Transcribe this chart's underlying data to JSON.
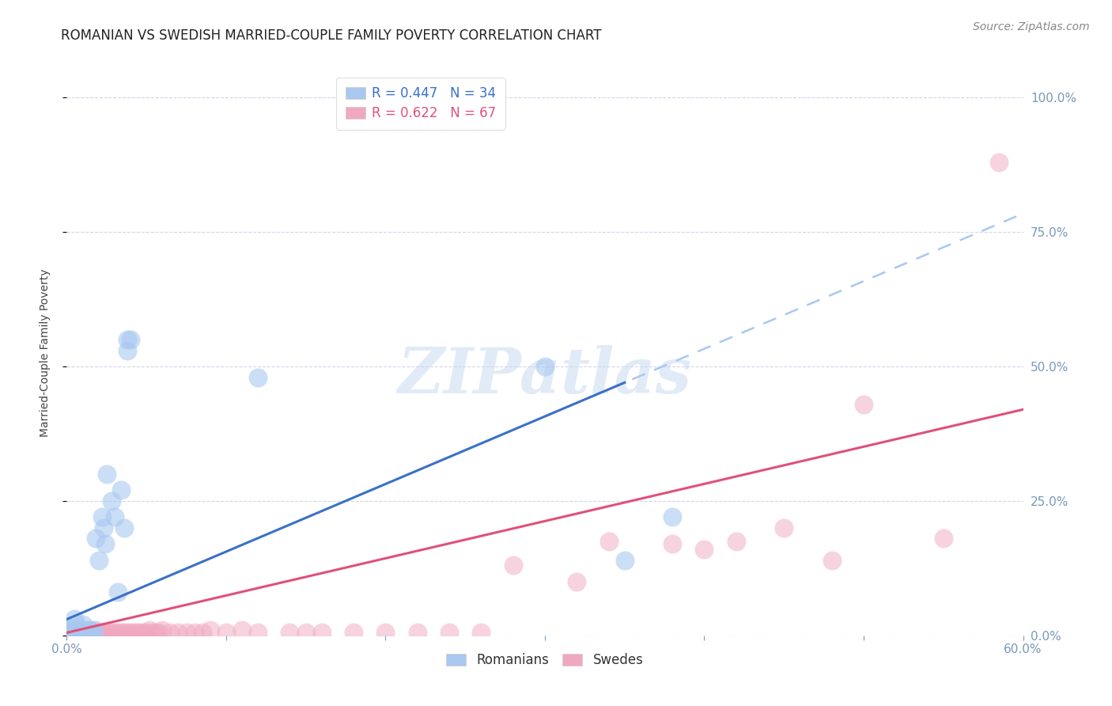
{
  "title": "ROMANIAN VS SWEDISH MARRIED-COUPLE FAMILY POVERTY CORRELATION CHART",
  "source": "Source: ZipAtlas.com",
  "ylabel_label": "Married-Couple Family Poverty",
  "xlim": [
    0.0,
    0.6
  ],
  "ylim": [
    0.0,
    1.05
  ],
  "xticks": [
    0.0,
    0.1,
    0.2,
    0.3,
    0.4,
    0.5,
    0.6
  ],
  "yticks": [
    0.0,
    0.25,
    0.5,
    0.75,
    1.0
  ],
  "ytick_labels": [
    "0.0%",
    "25.0%",
    "50.0%",
    "75.0%",
    "100.0%"
  ],
  "romanian_R": 0.447,
  "romanian_N": 34,
  "swedish_R": 0.622,
  "swedish_N": 67,
  "romanian_color": "#a8c8f0",
  "swedish_color": "#f0a8c0",
  "romanian_line_color": "#3a70c8",
  "swedish_line_color": "#e0507a",
  "dashed_line_color": "#a8c8f0",
  "watermark_text": "ZIPatlas",
  "background_color": "#ffffff",
  "grid_color": "#d0d8e8",
  "axis_color": "#7799bb",
  "romanian_points": [
    [
      0.002,
      0.01
    ],
    [
      0.003,
      0.015
    ],
    [
      0.004,
      0.005
    ],
    [
      0.005,
      0.03
    ],
    [
      0.006,
      0.02
    ],
    [
      0.007,
      0.01
    ],
    [
      0.008,
      0.005
    ],
    [
      0.009,
      0.005
    ],
    [
      0.01,
      0.02
    ],
    [
      0.011,
      0.01
    ],
    [
      0.012,
      0.005
    ],
    [
      0.013,
      0.005
    ],
    [
      0.014,
      0.01
    ],
    [
      0.015,
      0.005
    ],
    [
      0.016,
      0.01
    ],
    [
      0.017,
      0.005
    ],
    [
      0.018,
      0.18
    ],
    [
      0.02,
      0.14
    ],
    [
      0.022,
      0.22
    ],
    [
      0.023,
      0.2
    ],
    [
      0.024,
      0.17
    ],
    [
      0.025,
      0.3
    ],
    [
      0.028,
      0.25
    ],
    [
      0.03,
      0.22
    ],
    [
      0.032,
      0.08
    ],
    [
      0.034,
      0.27
    ],
    [
      0.036,
      0.2
    ],
    [
      0.038,
      0.55
    ],
    [
      0.038,
      0.53
    ],
    [
      0.04,
      0.55
    ],
    [
      0.12,
      0.48
    ],
    [
      0.3,
      0.5
    ],
    [
      0.35,
      0.14
    ],
    [
      0.38,
      0.22
    ]
  ],
  "swedish_points": [
    [
      0.002,
      0.005
    ],
    [
      0.003,
      0.005
    ],
    [
      0.004,
      0.005
    ],
    [
      0.005,
      0.005
    ],
    [
      0.006,
      0.005
    ],
    [
      0.007,
      0.005
    ],
    [
      0.008,
      0.005
    ],
    [
      0.009,
      0.005
    ],
    [
      0.01,
      0.005
    ],
    [
      0.011,
      0.005
    ],
    [
      0.012,
      0.005
    ],
    [
      0.013,
      0.005
    ],
    [
      0.014,
      0.005
    ],
    [
      0.015,
      0.005
    ],
    [
      0.016,
      0.005
    ],
    [
      0.017,
      0.005
    ],
    [
      0.018,
      0.01
    ],
    [
      0.019,
      0.005
    ],
    [
      0.02,
      0.005
    ],
    [
      0.022,
      0.005
    ],
    [
      0.024,
      0.005
    ],
    [
      0.026,
      0.005
    ],
    [
      0.028,
      0.005
    ],
    [
      0.03,
      0.005
    ],
    [
      0.032,
      0.005
    ],
    [
      0.034,
      0.005
    ],
    [
      0.036,
      0.005
    ],
    [
      0.038,
      0.005
    ],
    [
      0.04,
      0.005
    ],
    [
      0.042,
      0.005
    ],
    [
      0.044,
      0.005
    ],
    [
      0.046,
      0.005
    ],
    [
      0.048,
      0.005
    ],
    [
      0.05,
      0.005
    ],
    [
      0.052,
      0.01
    ],
    [
      0.054,
      0.005
    ],
    [
      0.056,
      0.005
    ],
    [
      0.058,
      0.005
    ],
    [
      0.06,
      0.01
    ],
    [
      0.065,
      0.005
    ],
    [
      0.07,
      0.005
    ],
    [
      0.075,
      0.005
    ],
    [
      0.08,
      0.005
    ],
    [
      0.085,
      0.005
    ],
    [
      0.09,
      0.01
    ],
    [
      0.1,
      0.005
    ],
    [
      0.11,
      0.01
    ],
    [
      0.12,
      0.005
    ],
    [
      0.14,
      0.005
    ],
    [
      0.15,
      0.005
    ],
    [
      0.16,
      0.005
    ],
    [
      0.18,
      0.005
    ],
    [
      0.2,
      0.005
    ],
    [
      0.22,
      0.005
    ],
    [
      0.24,
      0.005
    ],
    [
      0.26,
      0.005
    ],
    [
      0.28,
      0.13
    ],
    [
      0.32,
      0.1
    ],
    [
      0.34,
      0.175
    ],
    [
      0.38,
      0.17
    ],
    [
      0.4,
      0.16
    ],
    [
      0.42,
      0.175
    ],
    [
      0.45,
      0.2
    ],
    [
      0.48,
      0.14
    ],
    [
      0.5,
      0.43
    ],
    [
      0.55,
      0.18
    ],
    [
      0.585,
      0.88
    ]
  ],
  "title_fontsize": 12,
  "source_fontsize": 10,
  "axis_label_fontsize": 10,
  "tick_fontsize": 11,
  "legend_fontsize": 12,
  "watermark_fontsize": 58,
  "watermark_color": "#c5d8f0",
  "watermark_alpha": 0.5
}
